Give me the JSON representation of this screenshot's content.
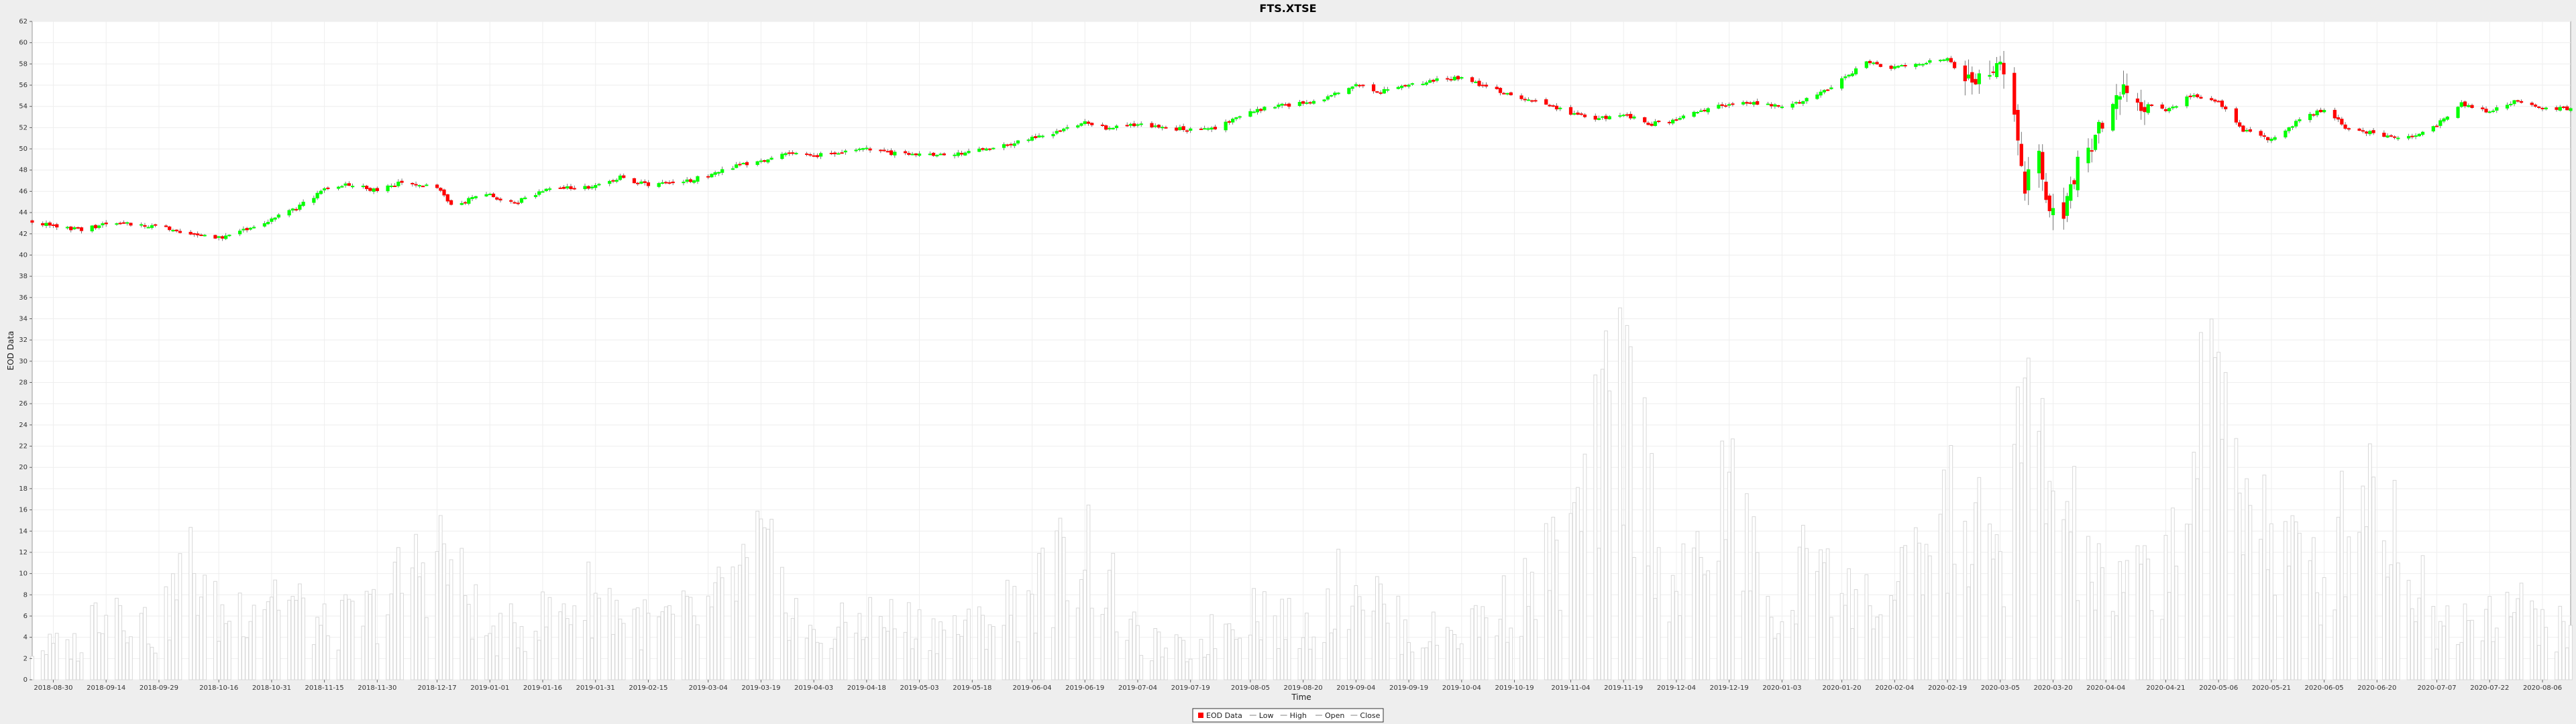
{
  "chart_data": {
    "type": "candlestick",
    "title": "FTS.XTSE",
    "xlabel": "Time",
    "ylabel": "EOD Data",
    "ylim": [
      0,
      62
    ],
    "y_ticks": [
      0,
      2,
      4,
      6,
      8,
      10,
      12,
      14,
      16,
      18,
      20,
      22,
      24,
      26,
      28,
      30,
      32,
      34,
      36,
      38,
      40,
      42,
      44,
      46,
      48,
      50,
      52,
      54,
      56,
      58,
      60,
      62
    ],
    "x_range": [
      "2018-08-24",
      "2020-08-14"
    ],
    "x_ticks": [
      "2018-08-30",
      "2018-09-14",
      "2018-09-29",
      "2018-10-16",
      "2018-10-31",
      "2018-11-15",
      "2018-11-30",
      "2018-12-17",
      "2019-01-01",
      "2019-01-16",
      "2019-01-31",
      "2019-02-15",
      "2019-03-04",
      "2019-03-19",
      "2019-04-03",
      "2019-04-18",
      "2019-05-03",
      "2019-05-18",
      "2019-06-04",
      "2019-06-19",
      "2019-07-04",
      "2019-07-19",
      "2019-08-05",
      "2019-08-20",
      "2019-09-04",
      "2019-09-19",
      "2019-10-04",
      "2019-10-19",
      "2019-11-04",
      "2019-11-19",
      "2019-12-04",
      "2019-12-19",
      "2020-01-03",
      "2020-01-20",
      "2020-02-04",
      "2020-02-19",
      "2020-03-05",
      "2020-03-20",
      "2020-04-04",
      "2020-04-21",
      "2020-05-06",
      "2020-05-21",
      "2020-06-05",
      "2020-06-20",
      "2020-07-07",
      "2020-07-22",
      "2020-08-06"
    ],
    "grid": true,
    "legend_placement": "bottom-center",
    "legend": [
      "EOD Data",
      "Low",
      "High",
      "Open",
      "Close"
    ],
    "colors": {
      "up": "#00ff00",
      "down": "#ff0000",
      "volume": "#d8d8d8",
      "grid": "#eeeeee",
      "plot_bg": "#ffffff"
    },
    "close_anchors": [
      {
        "date": "2018-08-24",
        "close": 43.2
      },
      {
        "date": "2018-08-30",
        "close": 42.7
      },
      {
        "date": "2018-09-07",
        "close": 42.4
      },
      {
        "date": "2018-09-14",
        "close": 42.9
      },
      {
        "date": "2018-09-21",
        "close": 42.9
      },
      {
        "date": "2018-09-29",
        "close": 42.7
      },
      {
        "date": "2018-10-10",
        "close": 41.9
      },
      {
        "date": "2018-10-16",
        "close": 41.6
      },
      {
        "date": "2018-10-24",
        "close": 42.5
      },
      {
        "date": "2018-10-31",
        "close": 43.4
      },
      {
        "date": "2018-11-07",
        "close": 44.4
      },
      {
        "date": "2018-11-15",
        "close": 46.2
      },
      {
        "date": "2018-11-22",
        "close": 46.7
      },
      {
        "date": "2018-11-30",
        "close": 46.0
      },
      {
        "date": "2018-12-07",
        "close": 46.9
      },
      {
        "date": "2018-12-17",
        "close": 46.5
      },
      {
        "date": "2018-12-21",
        "close": 44.6
      },
      {
        "date": "2018-12-27",
        "close": 45.3
      },
      {
        "date": "2019-01-01",
        "close": 45.6
      },
      {
        "date": "2019-01-08",
        "close": 44.9
      },
      {
        "date": "2019-01-16",
        "close": 46.1
      },
      {
        "date": "2019-01-24",
        "close": 46.4
      },
      {
        "date": "2019-01-31",
        "close": 46.4
      },
      {
        "date": "2019-02-07",
        "close": 47.3
      },
      {
        "date": "2019-02-15",
        "close": 46.6
      },
      {
        "date": "2019-02-25",
        "close": 46.9
      },
      {
        "date": "2019-03-04",
        "close": 47.5
      },
      {
        "date": "2019-03-12",
        "close": 48.4
      },
      {
        "date": "2019-03-19",
        "close": 48.8
      },
      {
        "date": "2019-03-27",
        "close": 49.6
      },
      {
        "date": "2019-04-03",
        "close": 49.3
      },
      {
        "date": "2019-04-10",
        "close": 49.7
      },
      {
        "date": "2019-04-18",
        "close": 50.0
      },
      {
        "date": "2019-04-25",
        "close": 49.6
      },
      {
        "date": "2019-05-03",
        "close": 49.4
      },
      {
        "date": "2019-05-10",
        "close": 49.5
      },
      {
        "date": "2019-05-18",
        "close": 49.7
      },
      {
        "date": "2019-05-25",
        "close": 50.2
      },
      {
        "date": "2019-06-04",
        "close": 51.0
      },
      {
        "date": "2019-06-11",
        "close": 51.6
      },
      {
        "date": "2019-06-19",
        "close": 52.5
      },
      {
        "date": "2019-06-26",
        "close": 51.9
      },
      {
        "date": "2019-07-04",
        "close": 52.3
      },
      {
        "date": "2019-07-12",
        "close": 52.0
      },
      {
        "date": "2019-07-19",
        "close": 51.8
      },
      {
        "date": "2019-07-26",
        "close": 52.0
      },
      {
        "date": "2019-08-05",
        "close": 53.5
      },
      {
        "date": "2019-08-12",
        "close": 54.0
      },
      {
        "date": "2019-08-20",
        "close": 54.3
      },
      {
        "date": "2019-08-27",
        "close": 54.8
      },
      {
        "date": "2019-09-04",
        "close": 56.0
      },
      {
        "date": "2019-09-11",
        "close": 55.4
      },
      {
        "date": "2019-09-19",
        "close": 56.0
      },
      {
        "date": "2019-09-26",
        "close": 56.5
      },
      {
        "date": "2019-10-04",
        "close": 56.7
      },
      {
        "date": "2019-10-11",
        "close": 55.8
      },
      {
        "date": "2019-10-19",
        "close": 55.0
      },
      {
        "date": "2019-10-26",
        "close": 54.3
      },
      {
        "date": "2019-11-04",
        "close": 53.4
      },
      {
        "date": "2019-11-11",
        "close": 52.8
      },
      {
        "date": "2019-11-19",
        "close": 53.3
      },
      {
        "date": "2019-11-26",
        "close": 52.3
      },
      {
        "date": "2019-12-04",
        "close": 52.7
      },
      {
        "date": "2019-12-11",
        "close": 53.6
      },
      {
        "date": "2019-12-19",
        "close": 54.2
      },
      {
        "date": "2019-12-27",
        "close": 54.3
      },
      {
        "date": "2020-01-03",
        "close": 54.0
      },
      {
        "date": "2020-01-10",
        "close": 54.6
      },
      {
        "date": "2020-01-20",
        "close": 56.5
      },
      {
        "date": "2020-01-27",
        "close": 58.2
      },
      {
        "date": "2020-02-04",
        "close": 57.6
      },
      {
        "date": "2020-02-11",
        "close": 58.0
      },
      {
        "date": "2020-02-19",
        "close": 58.5
      },
      {
        "date": "2020-02-26",
        "close": 56.0
      },
      {
        "date": "2020-03-05",
        "close": 58.0
      },
      {
        "date": "2020-03-09",
        "close": 54.0
      },
      {
        "date": "2020-03-12",
        "close": 47.0
      },
      {
        "date": "2020-03-16",
        "close": 49.0
      },
      {
        "date": "2020-03-18",
        "close": 45.0
      },
      {
        "date": "2020-03-20",
        "close": 44.0
      },
      {
        "date": "2020-03-23",
        "close": 43.0
      },
      {
        "date": "2020-03-27",
        "close": 48.5
      },
      {
        "date": "2020-04-04",
        "close": 53.0
      },
      {
        "date": "2020-04-08",
        "close": 55.8
      },
      {
        "date": "2020-04-14",
        "close": 54.5
      },
      {
        "date": "2020-04-21",
        "close": 53.5
      },
      {
        "date": "2020-04-28",
        "close": 55.0
      },
      {
        "date": "2020-05-06",
        "close": 54.5
      },
      {
        "date": "2020-05-13",
        "close": 51.8
      },
      {
        "date": "2020-05-21",
        "close": 50.8
      },
      {
        "date": "2020-05-28",
        "close": 52.5
      },
      {
        "date": "2020-06-05",
        "close": 53.8
      },
      {
        "date": "2020-06-12",
        "close": 51.8
      },
      {
        "date": "2020-06-20",
        "close": 51.5
      },
      {
        "date": "2020-06-27",
        "close": 50.8
      },
      {
        "date": "2020-07-07",
        "close": 52.3
      },
      {
        "date": "2020-07-14",
        "close": 54.3
      },
      {
        "date": "2020-07-22",
        "close": 53.5
      },
      {
        "date": "2020-07-29",
        "close": 54.5
      },
      {
        "date": "2020-08-06",
        "close": 53.8
      },
      {
        "date": "2020-08-14",
        "close": 53.8
      }
    ],
    "volume_anchors": [
      {
        "date": "2018-08-24",
        "volume": 4.0
      },
      {
        "date": "2018-09-07",
        "volume": 4.5
      },
      {
        "date": "2018-09-14",
        "volume": 12.0
      },
      {
        "date": "2018-09-29",
        "volume": 5.5
      },
      {
        "date": "2018-10-07",
        "volume": 15.5
      },
      {
        "date": "2018-10-16",
        "volume": 8.0
      },
      {
        "date": "2018-10-31",
        "volume": 12.0
      },
      {
        "date": "2018-11-15",
        "volume": 6.5
      },
      {
        "date": "2018-11-30",
        "volume": 9.0
      },
      {
        "date": "2018-12-17",
        "volume": 17.5
      },
      {
        "date": "2019-01-01",
        "volume": 5.5
      },
      {
        "date": "2019-01-16",
        "volume": 8.0
      },
      {
        "date": "2019-01-31",
        "volume": 11.0
      },
      {
        "date": "2019-02-15",
        "volume": 7.0
      },
      {
        "date": "2019-03-04",
        "volume": 8.5
      },
      {
        "date": "2019-03-19",
        "volume": 16.0
      },
      {
        "date": "2019-04-03",
        "volume": 5.0
      },
      {
        "date": "2019-04-18",
        "volume": 8.0
      },
      {
        "date": "2019-05-03",
        "volume": 7.0
      },
      {
        "date": "2019-05-18",
        "volume": 6.5
      },
      {
        "date": "2019-06-04",
        "volume": 11.0
      },
      {
        "date": "2019-06-19",
        "volume": 17.5
      },
      {
        "date": "2019-07-04",
        "volume": 5.0
      },
      {
        "date": "2019-07-19",
        "volume": 3.5
      },
      {
        "date": "2019-08-05",
        "volume": 10.0
      },
      {
        "date": "2019-08-20",
        "volume": 6.0
      },
      {
        "date": "2019-09-04",
        "volume": 14.0
      },
      {
        "date": "2019-09-19",
        "volume": 5.5
      },
      {
        "date": "2019-10-04",
        "volume": 6.5
      },
      {
        "date": "2019-10-19",
        "volume": 10.0
      },
      {
        "date": "2019-11-04",
        "volume": 17.0
      },
      {
        "date": "2019-11-19",
        "volume": 37.0
      },
      {
        "date": "2019-12-04",
        "volume": 10.0
      },
      {
        "date": "2019-12-19",
        "volume": 23.5
      },
      {
        "date": "2020-01-03",
        "volume": 5.5
      },
      {
        "date": "2020-01-14",
        "volume": 21.0
      },
      {
        "date": "2020-01-20",
        "volume": 10.5
      },
      {
        "date": "2020-02-04",
        "volume": 10.0
      },
      {
        "date": "2020-02-19",
        "volume": 21.0
      },
      {
        "date": "2020-03-05",
        "volume": 16.0
      },
      {
        "date": "2020-03-12",
        "volume": 32.5
      },
      {
        "date": "2020-03-20",
        "volume": 24.5
      },
      {
        "date": "2020-04-04",
        "volume": 10.0
      },
      {
        "date": "2020-04-21",
        "volume": 15.0
      },
      {
        "date": "2020-05-06",
        "volume": 37.5
      },
      {
        "date": "2020-05-21",
        "volume": 18.0
      },
      {
        "date": "2020-06-05",
        "volume": 12.5
      },
      {
        "date": "2020-06-17",
        "volume": 27.5
      },
      {
        "date": "2020-07-07",
        "volume": 7.0
      },
      {
        "date": "2020-07-22",
        "volume": 10.0
      },
      {
        "date": "2020-08-06",
        "volume": 8.0
      },
      {
        "date": "2020-08-14",
        "volume": 5.5
      }
    ]
  }
}
